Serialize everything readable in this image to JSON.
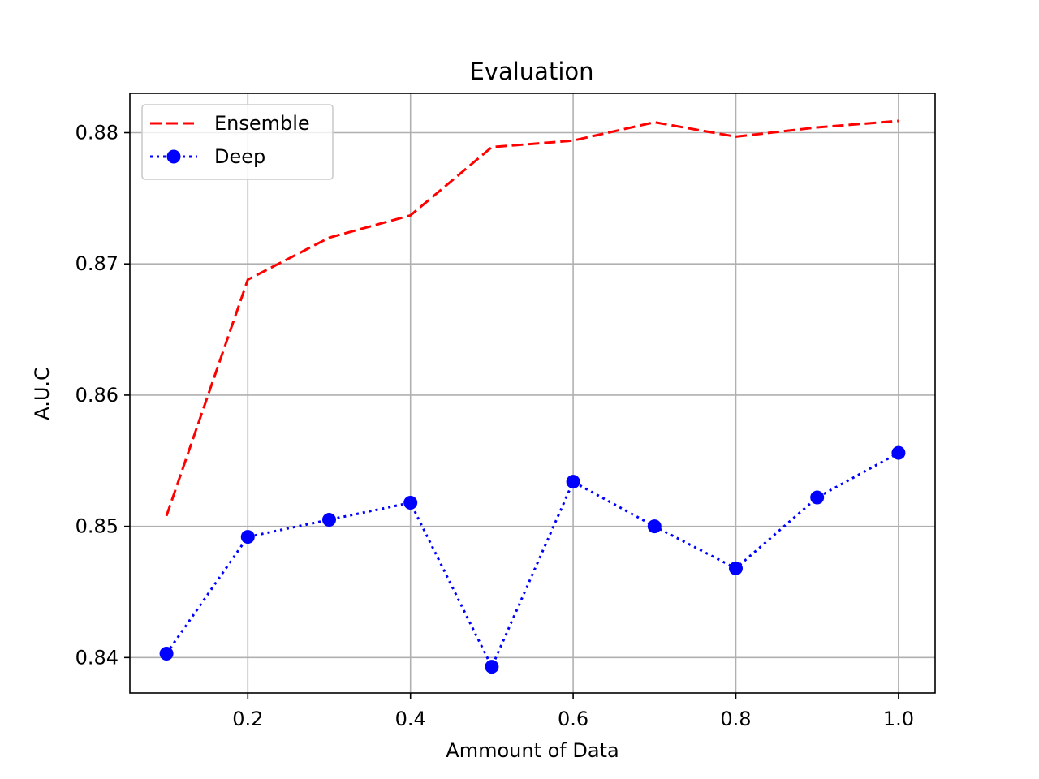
{
  "chart_data": {
    "type": "line",
    "title": "Evaluation",
    "xlabel": "Ammount of Data",
    "ylabel": "A.U.C",
    "x": [
      0.1,
      0.2,
      0.3,
      0.4,
      0.5,
      0.6,
      0.7,
      0.8,
      0.9,
      1.0
    ],
    "xlim": [
      0.055,
      1.045
    ],
    "ylim": [
      0.8373,
      0.883
    ],
    "xticks": [
      0.2,
      0.4,
      0.6,
      0.8,
      1.0
    ],
    "xtick_labels": [
      "0.2",
      "0.4",
      "0.6",
      "0.8",
      "1.0"
    ],
    "yticks": [
      0.84,
      0.85,
      0.86,
      0.87,
      0.88
    ],
    "ytick_labels": [
      "0.84",
      "0.85",
      "0.86",
      "0.87",
      "0.88"
    ],
    "grid": true,
    "legend_position": "top-left",
    "series": [
      {
        "name": "Ensemble",
        "color": "#ff0000",
        "line_style": "dashed",
        "marker": "none",
        "values": [
          0.8508,
          0.8688,
          0.872,
          0.8737,
          0.8789,
          0.8794,
          0.8808,
          0.8797,
          0.8804,
          0.8809
        ]
      },
      {
        "name": "Deep",
        "color": "#0000ff",
        "line_style": "dotted",
        "marker": "circle",
        "values": [
          0.8403,
          0.8492,
          0.8505,
          0.8518,
          0.8393,
          0.8534,
          0.85,
          0.8468,
          0.8522,
          0.8556
        ]
      }
    ]
  }
}
